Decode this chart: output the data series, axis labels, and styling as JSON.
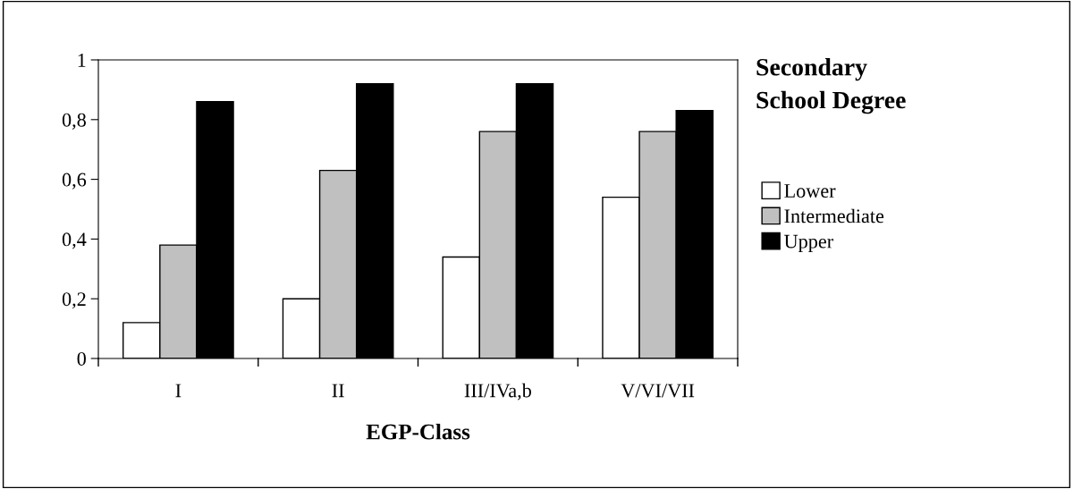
{
  "chart_data": {
    "type": "bar",
    "xlabel": "EGP-Class",
    "legend_title": "Secondary\nSchool Degree",
    "categories": [
      "I",
      "II",
      "III/IVa,b",
      "V/VI/VII"
    ],
    "series": [
      {
        "name": "Lower",
        "color": "#ffffff",
        "values": [
          0.12,
          0.2,
          0.34,
          0.54
        ]
      },
      {
        "name": "Intermediate",
        "color": "#c0c0c0",
        "values": [
          0.38,
          0.63,
          0.76,
          0.76
        ]
      },
      {
        "name": "Upper",
        "color": "#000000",
        "values": [
          0.86,
          0.92,
          0.92,
          0.83
        ]
      }
    ],
    "ylim": [
      0,
      1
    ],
    "yticks": [
      0,
      {
        "value": 0.2,
        "label": "0,2"
      },
      {
        "value": 0.4,
        "label": "0,4"
      },
      {
        "value": 0.6,
        "label": "0,6"
      },
      {
        "value": 0.8,
        "label": "0,8"
      },
      1
    ],
    "grid": false,
    "legend": "right"
  }
}
